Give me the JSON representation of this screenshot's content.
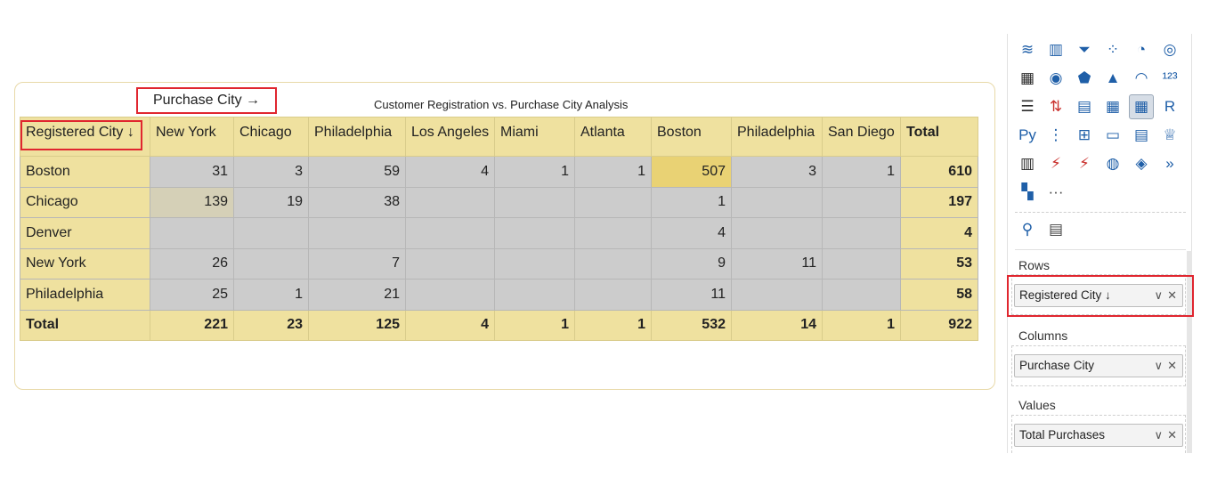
{
  "visual": {
    "title": "Customer Registration vs. Purchase City Analysis",
    "column_annotation": "Purchase City →",
    "row_header": "Registered City ↓"
  },
  "matrix": {
    "columns": [
      "New York",
      "Chicago",
      "Philadelphia",
      "Los Angeles",
      "Miami",
      "Atlanta",
      "Boston",
      "Philadelphia",
      "San Diego"
    ],
    "total_label": "Total",
    "rows": [
      {
        "city": "Boston",
        "values": [
          "31",
          "3",
          "59",
          "4",
          "1",
          "1",
          "507",
          "3",
          "1"
        ],
        "total": "610"
      },
      {
        "city": "Chicago",
        "values": [
          "139",
          "19",
          "38",
          "",
          "",
          "",
          "1",
          "",
          ""
        ],
        "total": "197"
      },
      {
        "city": "Denver",
        "values": [
          "",
          "",
          "",
          "",
          "",
          "",
          "4",
          "",
          ""
        ],
        "total": "4"
      },
      {
        "city": "New York",
        "values": [
          "26",
          "",
          "7",
          "",
          "",
          "",
          "9",
          "11",
          ""
        ],
        "total": "53"
      },
      {
        "city": "Philadelphia",
        "values": [
          "25",
          "1",
          "21",
          "",
          "",
          "",
          "11",
          "",
          ""
        ],
        "total": "58"
      }
    ],
    "grand_total": {
      "label": "Total",
      "values": [
        "221",
        "23",
        "125",
        "4",
        "1",
        "1",
        "532",
        "14",
        "1"
      ],
      "total": "922"
    }
  },
  "pane": {
    "icons": [
      [
        "ribbon-chart-icon",
        "waterfall-chart-icon",
        "funnel-icon",
        "scatter-chart-icon",
        "pie-chart-icon",
        "donut-chart-icon"
      ],
      [
        "treemap-icon",
        "map-icon",
        "filled-map-icon",
        "azure-map-icon",
        "gauge-icon",
        "card-icon"
      ],
      [
        "multi-row-card-icon",
        "kpi-icon",
        "slicer-icon",
        "table-icon",
        "matrix-icon",
        "r-visual-icon"
      ],
      [
        "python-visual-icon",
        "key-influencers-icon",
        "decomposition-tree-icon",
        "qa-icon",
        "narrative-icon",
        "goals-icon"
      ],
      [
        "paginated-report-icon",
        "power-apps-icon",
        "power-automate-icon",
        "arcgis-icon",
        "power-apps-diamond-icon",
        "power-automate-chevron-icon"
      ],
      [
        "more-visuals-icon",
        "ellipsis-icon"
      ]
    ],
    "icon_glyphs": [
      [
        "≋",
        "▥",
        "⏷",
        "⁘",
        "◔",
        "◎"
      ],
      [
        "▦",
        "◉",
        "⬟",
        "▲",
        "◠",
        "¹²³"
      ],
      [
        "☰",
        "⇅",
        "▤",
        "▦",
        "▦",
        "R"
      ],
      [
        "Py",
        "⋮",
        "⊞",
        "▭",
        "▤",
        "♕"
      ],
      [
        "▥",
        "⚡",
        "⚡",
        "◍",
        "◈",
        "»"
      ],
      [
        "▚",
        "···"
      ]
    ],
    "tool_icons": [
      "search-icon",
      "format-icon"
    ],
    "tool_glyphs": [
      "⚲",
      "▤"
    ],
    "wells": {
      "rows_label": "Rows",
      "rows_field": "Registered City ↓",
      "columns_label": "Columns",
      "columns_field": "Purchase City",
      "values_label": "Values",
      "values_field": "Total Purchases"
    },
    "chevron": "∨",
    "remove": "✕"
  },
  "colors": {
    "header_bg": "#efe19f",
    "cell_bg": "#cccccc",
    "highlight_hot": "#e9d274",
    "highlight_warm": "#d5d0b7",
    "annotation_red": "#e0262f",
    "icon_blue": "#1f5fa8"
  }
}
